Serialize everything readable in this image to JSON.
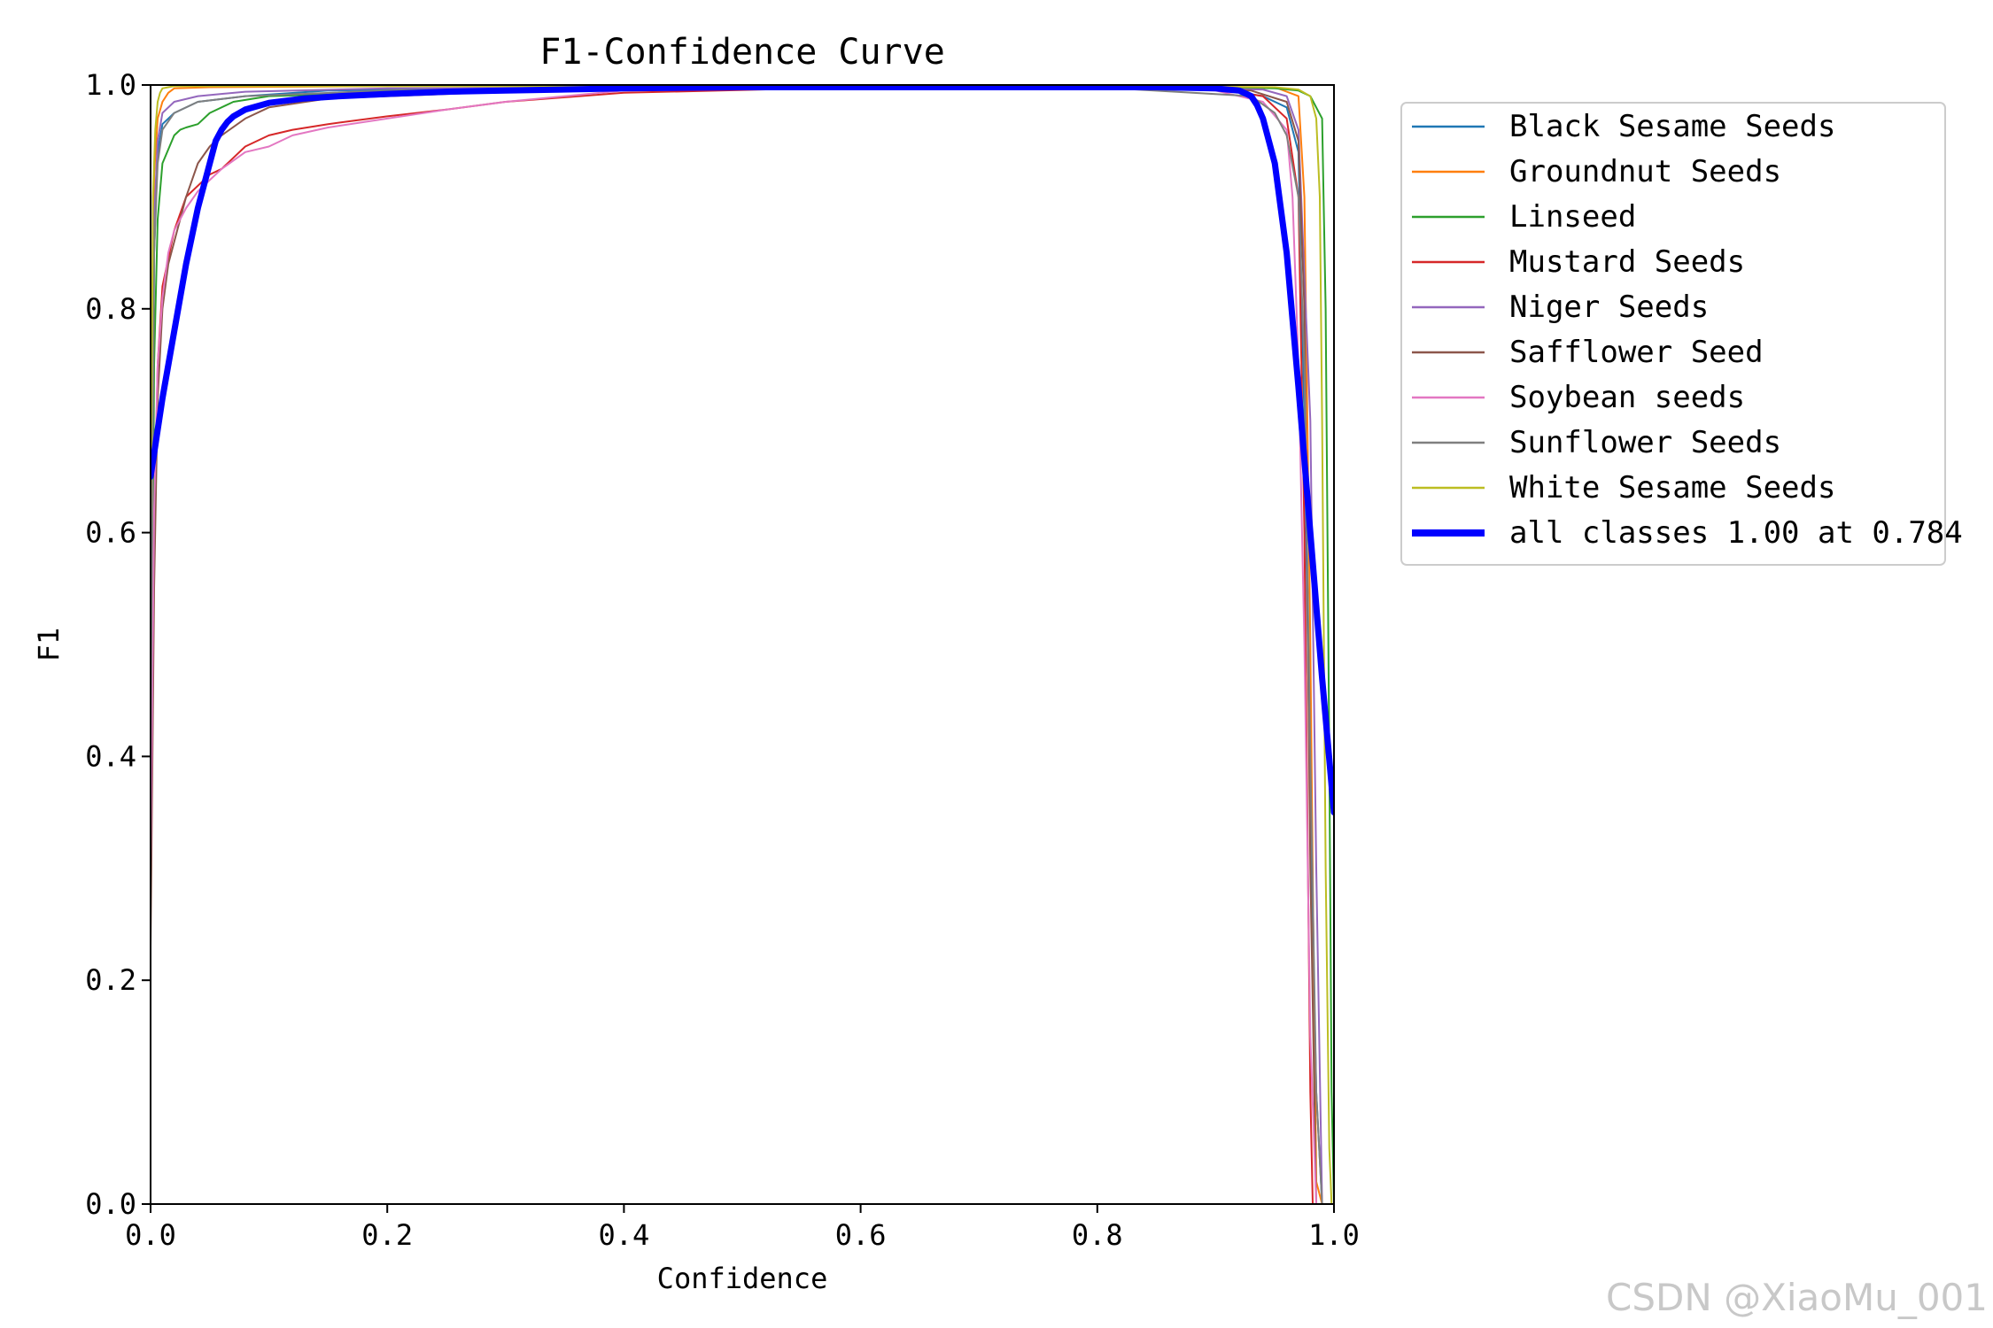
{
  "chart_data": {
    "type": "line",
    "title": "F1-Confidence Curve",
    "xlabel": "Confidence",
    "ylabel": "F1",
    "xlim": [
      0,
      1
    ],
    "ylim": [
      0,
      1
    ],
    "x_ticks": [
      0.0,
      0.2,
      0.4,
      0.6,
      0.8,
      1.0
    ],
    "y_ticks": [
      0.0,
      0.2,
      0.4,
      0.6,
      0.8,
      1.0
    ],
    "x_tick_labels": [
      "0.0",
      "0.2",
      "0.4",
      "0.6",
      "0.8",
      "1.0"
    ],
    "y_tick_labels": [
      "0.0",
      "0.2",
      "0.4",
      "0.6",
      "0.8",
      "1.0"
    ],
    "grid": false,
    "legend_position": "outside-right",
    "series": [
      {
        "name": "Black Sesame Seeds",
        "color": "#1f77b4",
        "width": 2,
        "x": [
          0.0,
          0.003,
          0.006,
          0.01,
          0.02,
          0.04,
          0.08,
          0.15,
          0.3,
          0.5,
          0.7,
          0.9,
          0.94,
          0.96,
          0.97,
          0.975,
          0.98,
          0.985,
          0.99
        ],
        "y": [
          0.4,
          0.85,
          0.94,
          0.965,
          0.975,
          0.985,
          0.99,
          0.995,
          0.997,
          0.998,
          0.998,
          0.997,
          0.99,
          0.98,
          0.94,
          0.7,
          0.35,
          0.1,
          0.0
        ]
      },
      {
        "name": "Groundnut Seeds",
        "color": "#ff7f0e",
        "width": 2,
        "x": [
          0.0,
          0.003,
          0.006,
          0.01,
          0.015,
          0.02,
          0.05,
          0.2,
          0.5,
          0.8,
          0.95,
          0.97,
          0.975,
          0.98,
          0.983,
          0.985,
          0.99
        ],
        "y": [
          0.5,
          0.92,
          0.97,
          0.985,
          0.993,
          0.997,
          0.998,
          0.999,
          0.999,
          0.999,
          0.998,
          0.99,
          0.9,
          0.5,
          0.2,
          0.02,
          0.0
        ]
      },
      {
        "name": "Linseed",
        "color": "#2ca02c",
        "width": 2,
        "x": [
          0.0,
          0.003,
          0.006,
          0.01,
          0.02,
          0.025,
          0.03,
          0.04,
          0.05,
          0.07,
          0.1,
          0.2,
          0.4,
          0.7,
          0.9,
          0.95,
          0.97,
          0.98,
          0.99,
          0.993,
          0.996,
          0.998,
          1.0
        ],
        "y": [
          0.3,
          0.75,
          0.88,
          0.93,
          0.955,
          0.96,
          0.962,
          0.965,
          0.975,
          0.985,
          0.99,
          0.993,
          0.996,
          0.998,
          0.998,
          0.997,
          0.995,
          0.99,
          0.97,
          0.8,
          0.4,
          0.1,
          0.0
        ]
      },
      {
        "name": "Mustard Seeds",
        "color": "#d62728",
        "width": 2,
        "x": [
          0.0,
          0.003,
          0.006,
          0.01,
          0.02,
          0.03,
          0.04,
          0.05,
          0.06,
          0.07,
          0.08,
          0.1,
          0.12,
          0.15,
          0.2,
          0.25,
          0.3,
          0.4,
          0.6,
          0.8,
          0.9,
          0.94,
          0.96,
          0.97,
          0.975,
          0.98,
          0.982
        ],
        "y": [
          0.3,
          0.6,
          0.75,
          0.82,
          0.87,
          0.9,
          0.91,
          0.92,
          0.925,
          0.935,
          0.945,
          0.955,
          0.96,
          0.965,
          0.972,
          0.978,
          0.985,
          0.993,
          0.998,
          0.998,
          0.997,
          0.99,
          0.97,
          0.9,
          0.6,
          0.1,
          0.0
        ]
      },
      {
        "name": "Niger Seeds",
        "color": "#9467bd",
        "width": 2,
        "x": [
          0.0,
          0.003,
          0.006,
          0.01,
          0.02,
          0.04,
          0.08,
          0.2,
          0.5,
          0.8,
          0.94,
          0.96,
          0.97,
          0.98,
          0.985,
          0.99
        ],
        "y": [
          0.45,
          0.88,
          0.95,
          0.975,
          0.985,
          0.99,
          0.994,
          0.997,
          0.998,
          0.998,
          0.996,
          0.99,
          0.96,
          0.7,
          0.3,
          0.0
        ]
      },
      {
        "name": "Safflower Seed",
        "color": "#8c564b",
        "width": 2,
        "x": [
          0.0,
          0.003,
          0.006,
          0.01,
          0.015,
          0.02,
          0.025,
          0.03,
          0.04,
          0.05,
          0.06,
          0.08,
          0.1,
          0.15,
          0.3,
          0.5,
          0.8,
          0.93,
          0.96,
          0.97,
          0.975,
          0.98,
          0.985
        ],
        "y": [
          0.23,
          0.55,
          0.72,
          0.8,
          0.84,
          0.86,
          0.88,
          0.9,
          0.93,
          0.945,
          0.955,
          0.97,
          0.98,
          0.988,
          0.994,
          0.998,
          0.998,
          0.995,
          0.985,
          0.95,
          0.8,
          0.3,
          0.0
        ]
      },
      {
        "name": "Soybean seeds",
        "color": "#e377c2",
        "width": 2,
        "x": [
          0.0,
          0.003,
          0.006,
          0.01,
          0.015,
          0.02,
          0.03,
          0.04,
          0.05,
          0.06,
          0.08,
          0.1,
          0.12,
          0.15,
          0.2,
          0.25,
          0.3,
          0.35,
          0.4,
          0.6,
          0.8,
          0.9,
          0.94,
          0.96,
          0.965,
          0.97,
          0.975,
          0.98,
          0.985
        ],
        "y": [
          0.3,
          0.62,
          0.75,
          0.81,
          0.85,
          0.87,
          0.89,
          0.905,
          0.915,
          0.925,
          0.94,
          0.945,
          0.955,
          0.962,
          0.97,
          0.978,
          0.985,
          0.99,
          0.995,
          0.998,
          0.998,
          0.995,
          0.985,
          0.96,
          0.9,
          0.75,
          0.5,
          0.15,
          0.0
        ]
      },
      {
        "name": "Sunflower Seeds",
        "color": "#7f7f7f",
        "width": 2,
        "x": [
          0.0,
          0.003,
          0.006,
          0.01,
          0.02,
          0.04,
          0.08,
          0.2,
          0.5,
          0.8,
          0.93,
          0.95,
          0.96,
          0.97,
          0.975,
          0.98,
          0.985,
          0.99
        ],
        "y": [
          0.4,
          0.85,
          0.93,
          0.96,
          0.975,
          0.985,
          0.99,
          0.995,
          0.998,
          0.998,
          0.99,
          0.975,
          0.955,
          0.9,
          0.75,
          0.4,
          0.1,
          0.0
        ]
      },
      {
        "name": "White Sesame Seeds",
        "color": "#bcbd22",
        "width": 2,
        "x": [
          0.0,
          0.002,
          0.004,
          0.006,
          0.008,
          0.01,
          0.015,
          0.02,
          0.05,
          0.2,
          0.5,
          0.8,
          0.95,
          0.97,
          0.98,
          0.985,
          0.988,
          0.99,
          0.993,
          0.996,
          0.998
        ],
        "y": [
          0.6,
          0.9,
          0.96,
          0.985,
          0.993,
          0.997,
          0.998,
          0.999,
          0.999,
          0.999,
          0.999,
          0.999,
          0.998,
          0.996,
          0.99,
          0.97,
          0.9,
          0.7,
          0.3,
          0.05,
          0.0
        ]
      },
      {
        "name": "all classes 1.00 at 0.784",
        "color": "#0000ff",
        "width": 7,
        "x": [
          0.0,
          0.01,
          0.02,
          0.03,
          0.04,
          0.05,
          0.055,
          0.06,
          0.065,
          0.07,
          0.08,
          0.1,
          0.13,
          0.16,
          0.2,
          0.25,
          0.3,
          0.4,
          0.5,
          0.6,
          0.7,
          0.784,
          0.85,
          0.9,
          0.91,
          0.92,
          0.93,
          0.935,
          0.94,
          0.95,
          0.96,
          0.97,
          0.98,
          0.99,
          1.0
        ],
        "y": [
          0.65,
          0.72,
          0.78,
          0.84,
          0.89,
          0.93,
          0.95,
          0.96,
          0.967,
          0.972,
          0.978,
          0.984,
          0.988,
          0.99,
          0.992,
          0.994,
          0.995,
          0.997,
          0.998,
          0.998,
          0.998,
          0.998,
          0.998,
          0.997,
          0.996,
          0.995,
          0.99,
          0.982,
          0.97,
          0.93,
          0.85,
          0.73,
          0.6,
          0.47,
          0.35
        ]
      }
    ]
  },
  "watermark": "CSDN @XiaoMu_001"
}
